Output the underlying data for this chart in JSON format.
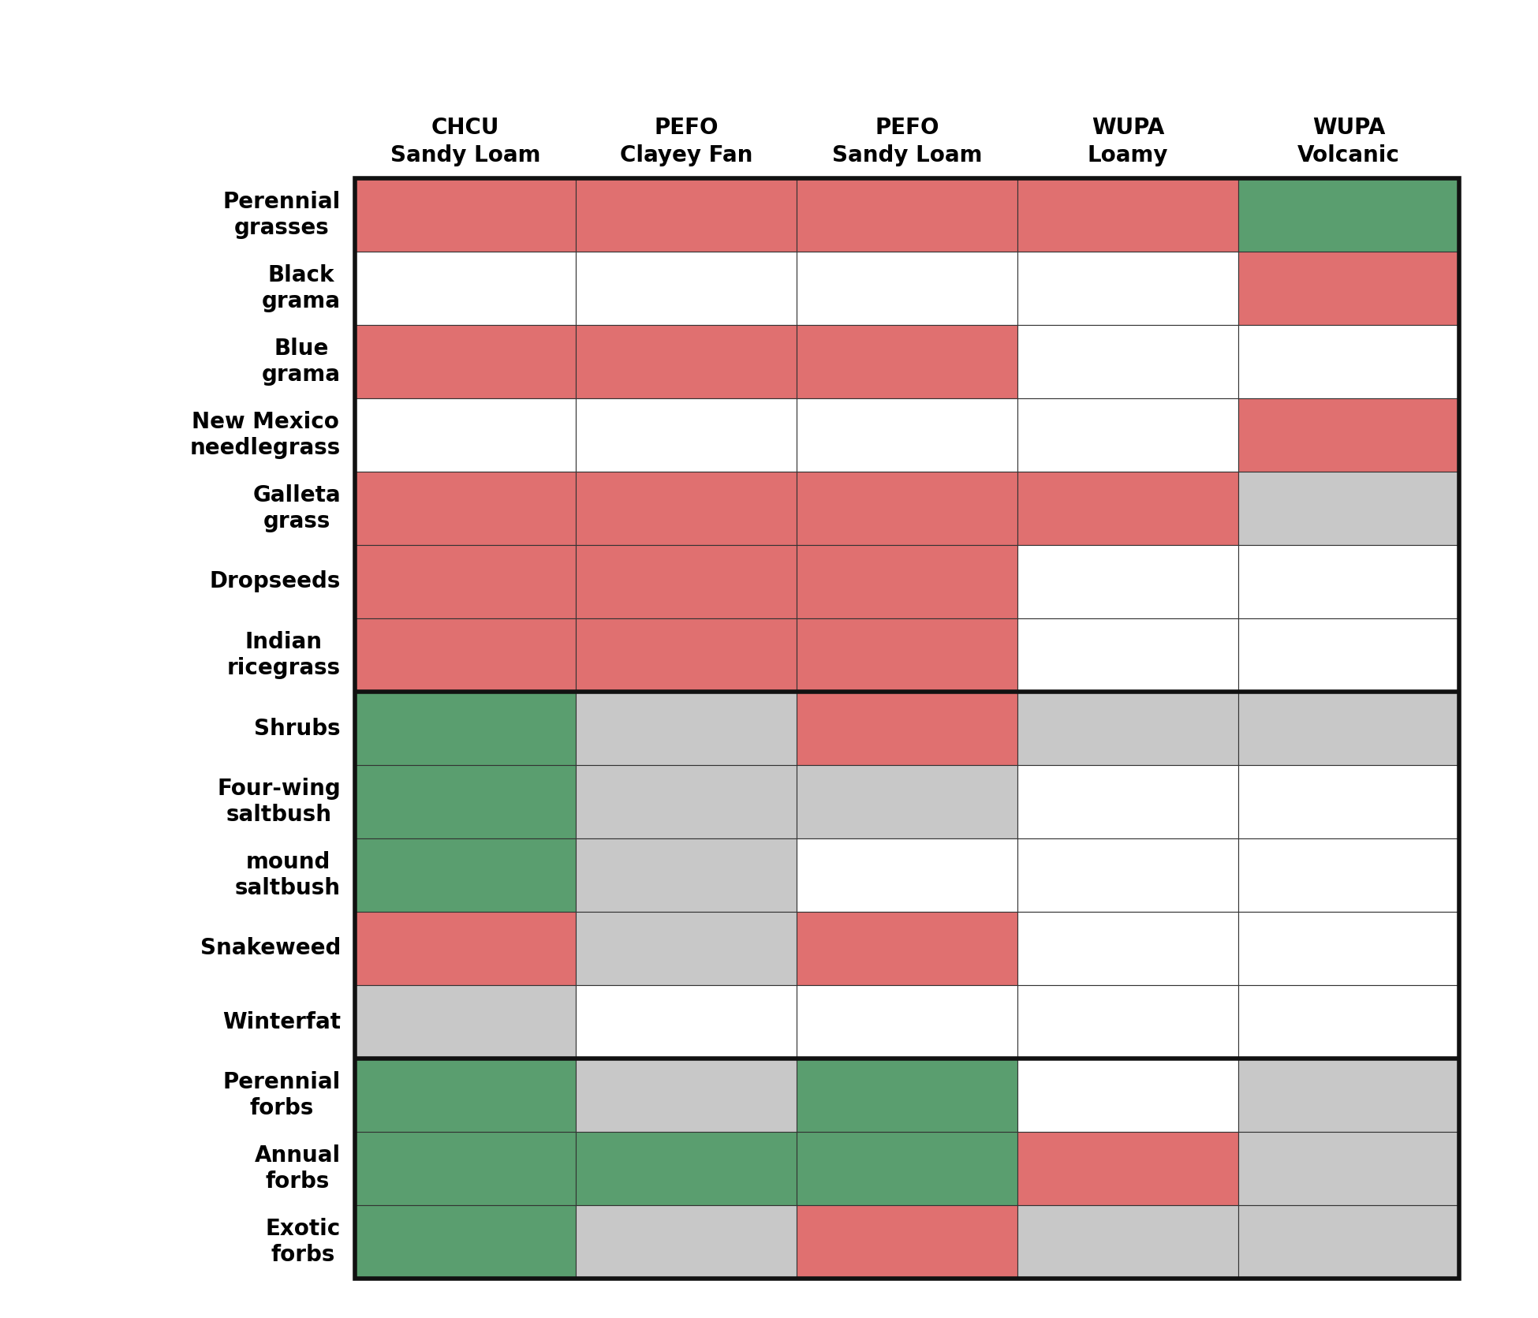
{
  "col_labels": [
    "CHCU\nSandy Loam",
    "PEFO\nClayey Fan",
    "PEFO\nSandy Loam",
    "WUPA\nLoamy",
    "WUPA\nVolcanic"
  ],
  "row_labels": [
    "Perennial\ngrasses",
    "Black\ngrama",
    "Blue\ngrama",
    "New Mexico\nneedlegrass",
    "Galleta\ngrass",
    "Dropseeds",
    "Indian\nricegrass",
    "Shrubs",
    "Four-wing\nsaltbush",
    "mound\nsaltbush",
    "Snakeweed",
    "Winterfat",
    "Perennial\nforbs",
    "Annual\nforbs",
    "Exotic\nforbs"
  ],
  "group_dividers": [
    7,
    12
  ],
  "cells": [
    [
      "red",
      "red",
      "red",
      "red",
      "green"
    ],
    [
      "white",
      "white",
      "white",
      "white",
      "red"
    ],
    [
      "red",
      "red",
      "red",
      "white",
      "white"
    ],
    [
      "white",
      "white",
      "white",
      "white",
      "red"
    ],
    [
      "red",
      "red",
      "red",
      "red",
      "gray"
    ],
    [
      "red",
      "red",
      "red",
      "white",
      "white"
    ],
    [
      "red",
      "red",
      "red",
      "white",
      "white"
    ],
    [
      "green",
      "gray",
      "red",
      "gray",
      "gray"
    ],
    [
      "green",
      "gray",
      "gray",
      "white",
      "white"
    ],
    [
      "green",
      "gray",
      "white",
      "white",
      "white"
    ],
    [
      "red",
      "gray",
      "red",
      "white",
      "white"
    ],
    [
      "gray",
      "white",
      "white",
      "white",
      "white"
    ],
    [
      "green",
      "gray",
      "green",
      "white",
      "gray"
    ],
    [
      "green",
      "green",
      "green",
      "red",
      "gray"
    ],
    [
      "green",
      "gray",
      "red",
      "gray",
      "gray"
    ]
  ],
  "color_map": {
    "red": "#E07070",
    "green": "#5A9E6F",
    "gray": "#C8C8C8",
    "white": "#FFFFFF"
  },
  "border_color": "#333333",
  "group_border_color": "#111111",
  "background_color": "#FFFFFF",
  "label_fontsize": 20,
  "header_fontsize": 20,
  "fig_width": 19.5,
  "fig_height": 16.71
}
